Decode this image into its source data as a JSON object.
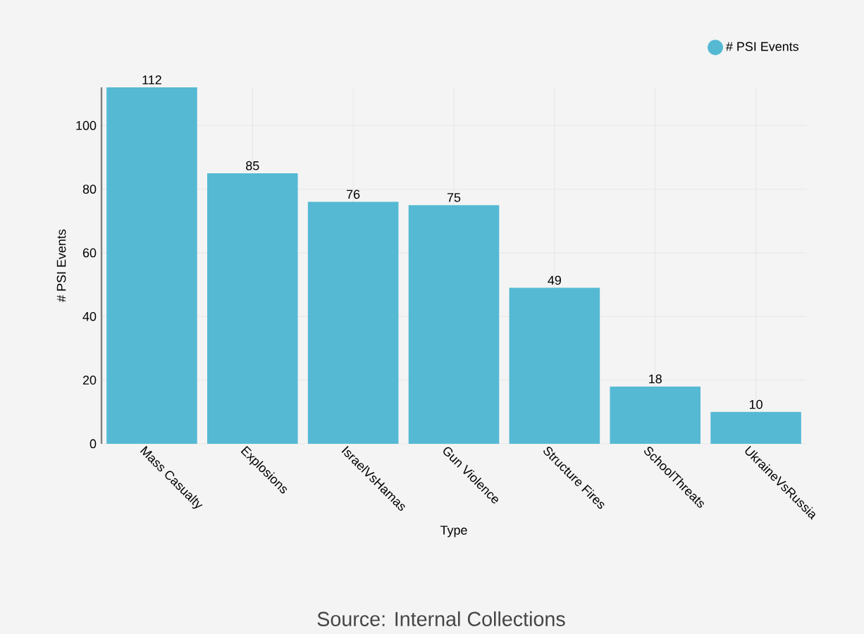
{
  "chart_data": {
    "type": "bar",
    "categories": [
      "Mass Casualty",
      "Explosions",
      "IsraelVsHamas",
      "Gun Violence",
      "Structure Fires",
      "SchoolThreats",
      "UkraineVsRussia"
    ],
    "series": [
      {
        "name": "# PSI Events",
        "color": "#55b9d4",
        "values": [
          112,
          85,
          76,
          75,
          49,
          18,
          10
        ]
      }
    ],
    "xlabel": "Type",
    "ylabel": "# PSI Events",
    "ylim": [
      0,
      112
    ],
    "yticks": [
      0,
      20,
      40,
      60,
      80,
      100
    ],
    "grid": true,
    "legend": "top right",
    "data_labels": true,
    "annotations": [
      "Source: Internal Collections"
    ]
  }
}
